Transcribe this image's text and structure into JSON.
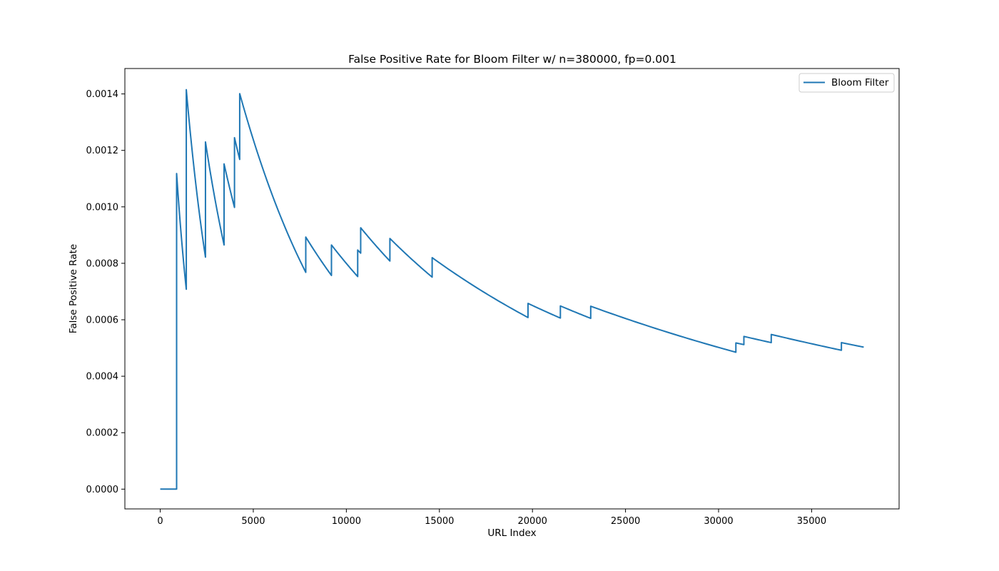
{
  "chart_data": {
    "type": "line",
    "title": "False Positive Rate for Bloom Filter w/ n=380000, fp=0.001",
    "xlabel": "URL Index",
    "ylabel": "False Positive Rate",
    "xlim": [
      -1900,
      39700
    ],
    "ylim": [
      -7e-05,
      0.00149
    ],
    "xticks": [
      0,
      5000,
      10000,
      15000,
      20000,
      25000,
      30000,
      35000
    ],
    "xtick_labels": [
      "0",
      "5000",
      "10000",
      "15000",
      "20000",
      "25000",
      "30000",
      "35000"
    ],
    "yticks": [
      0,
      0.0002,
      0.0004,
      0.0006,
      0.0008,
      0.001,
      0.0012,
      0.0014
    ],
    "ytick_labels": [
      "0.0000",
      "0.0002",
      "0.0004",
      "0.0006",
      "0.0008",
      "0.0010",
      "0.0012",
      "0.0014"
    ],
    "grid": false,
    "legend": {
      "placement": "top-right",
      "entries": [
        "Bloom Filter"
      ]
    },
    "series": [
      {
        "name": "Bloom Filter",
        "color": "#1f77b4",
        "x": [
          0,
          880,
          880,
          1400,
          1400,
          2430,
          2430,
          3430,
          3430,
          3990,
          3990,
          4270,
          4270,
          7820,
          7820,
          9200,
          9200,
          10610,
          10610,
          10770,
          10770,
          12340,
          12340,
          14610,
          14610,
          19760,
          19760,
          21500,
          21500,
          23130,
          23130,
          30930,
          30930,
          31360,
          31360,
          32830,
          32830,
          36600,
          36600,
          37800
        ],
        "y": [
          0,
          0,
          0.001118,
          0.000708,
          0.001415,
          0.000822,
          0.00123,
          0.000865,
          0.001152,
          0.000998,
          0.001245,
          0.001168,
          0.001401,
          0.000768,
          0.000893,
          0.000757,
          0.000865,
          0.000753,
          0.000847,
          0.000836,
          0.000926,
          0.000808,
          0.000888,
          0.000751,
          0.00082,
          0.000608,
          0.000658,
          0.000606,
          0.000649,
          0.000605,
          0.000648,
          0.000485,
          0.000518,
          0.000512,
          0.000541,
          0.000519,
          0.000548,
          0.000492,
          0.000519,
          0.000503
        ],
        "segments": [
          {
            "x0": 880,
            "y0": 0.001118,
            "x1": 1400,
            "y1": 0.000708
          },
          {
            "x0": 1400,
            "y0": 0.001415,
            "x1": 2430,
            "y1": 0.000822
          },
          {
            "x0": 2430,
            "y0": 0.00123,
            "x1": 3430,
            "y1": 0.000865
          },
          {
            "x0": 3430,
            "y0": 0.001152,
            "x1": 3990,
            "y1": 0.000998
          },
          {
            "x0": 3990,
            "y0": 0.001245,
            "x1": 4270,
            "y1": 0.001168
          },
          {
            "x0": 4270,
            "y0": 0.001401,
            "x1": 7820,
            "y1": 0.000768
          },
          {
            "x0": 7820,
            "y0": 0.000893,
            "x1": 9200,
            "y1": 0.000757
          },
          {
            "x0": 9200,
            "y0": 0.000865,
            "x1": 10610,
            "y1": 0.000753
          },
          {
            "x0": 10610,
            "y0": 0.000847,
            "x1": 10770,
            "y1": 0.000836
          },
          {
            "x0": 10770,
            "y0": 0.000926,
            "x1": 12340,
            "y1": 0.000808
          },
          {
            "x0": 12340,
            "y0": 0.000888,
            "x1": 14610,
            "y1": 0.000751
          },
          {
            "x0": 14610,
            "y0": 0.00082,
            "x1": 19760,
            "y1": 0.000608
          },
          {
            "x0": 19760,
            "y0": 0.000658,
            "x1": 21500,
            "y1": 0.000606
          },
          {
            "x0": 21500,
            "y0": 0.000649,
            "x1": 23130,
            "y1": 0.000605
          },
          {
            "x0": 23130,
            "y0": 0.000648,
            "x1": 30930,
            "y1": 0.000485
          },
          {
            "x0": 30930,
            "y0": 0.000518,
            "x1": 31360,
            "y1": 0.000512
          },
          {
            "x0": 31360,
            "y0": 0.000541,
            "x1": 32830,
            "y1": 0.000519
          },
          {
            "x0": 32830,
            "y0": 0.000548,
            "x1": 36600,
            "y1": 0.000492
          },
          {
            "x0": 36600,
            "y0": 0.000519,
            "x1": 37800,
            "y1": 0.000503
          }
        ]
      }
    ]
  }
}
